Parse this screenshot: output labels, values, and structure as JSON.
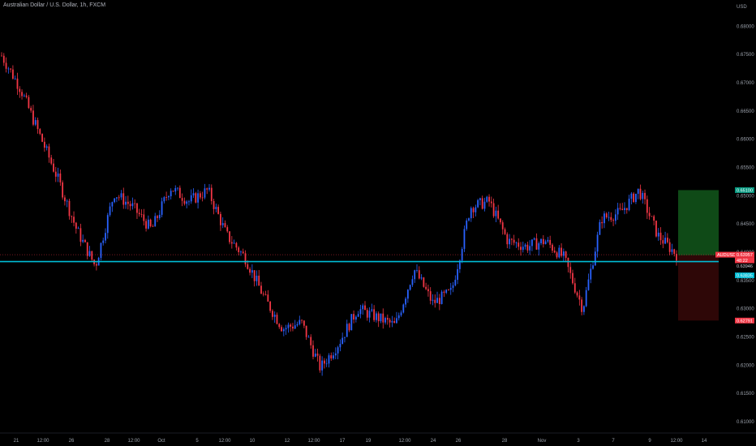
{
  "header": {
    "title": "Australian Dollar / U.S. Dollar, 1h, FXCM"
  },
  "price_axis": {
    "unit": "USD",
    "ticks": [
      "0.68000",
      "0.67500",
      "0.67000",
      "0.66500",
      "0.66000",
      "0.65500",
      "0.65000",
      "0.64500",
      "0.64000",
      "0.63500",
      "0.63000",
      "0.62500",
      "0.62000",
      "0.61500",
      "0.61000"
    ]
  },
  "time_axis": {
    "ticks": [
      "21",
      "12:00",
      "26",
      "28",
      "12:00",
      "Oct",
      "5",
      "12:00",
      "10",
      "12",
      "12:00",
      "17",
      "19",
      "12:00",
      "24",
      "26",
      "28",
      "Nov",
      "3",
      "7",
      "9",
      "12:00",
      "14"
    ]
  },
  "price_tags": {
    "target": {
      "value": "0.65100",
      "color": "#089981"
    },
    "symbol": {
      "label": "AUDUSD",
      "color": "#f23645"
    },
    "last_price": {
      "value": "0.63957",
      "color": "#f23645"
    },
    "countdown": {
      "value": "48:22",
      "color": "#f23645"
    },
    "entry": {
      "value": "0.63946",
      "color": "#000000"
    },
    "hline": {
      "value": "0.63835",
      "color": "#00bcd4"
    },
    "stop": {
      "value": "0.62791",
      "color": "#f23645"
    }
  },
  "colors": {
    "up_candle": "#2962ff",
    "down_candle": "#f23645",
    "profit_zone": "#0f4a17",
    "loss_zone": "#2e0707",
    "horizontal_line": "#00bcd4"
  },
  "chart_data": {
    "type": "candlestick",
    "title": "Australian Dollar / U.S. Dollar, 1h, FXCM",
    "ylim": [
      0.608,
      0.6825
    ],
    "close_path": [
      [
        "21",
        0.6748
      ],
      [
        "12:00",
        0.669
      ],
      [
        "26",
        0.661
      ],
      [
        "26",
        0.653
      ],
      [
        "28",
        0.644
      ],
      [
        "28",
        0.6375
      ],
      [
        "12:00",
        0.6505
      ],
      [
        "12:00",
        0.648
      ],
      [
        "Oct",
        0.644
      ],
      [
        "Oct",
        0.6515
      ],
      [
        "5",
        0.649
      ],
      [
        "12:00",
        0.651
      ],
      [
        "12:00",
        0.643
      ],
      [
        "10",
        0.639
      ],
      [
        "10",
        0.632
      ],
      [
        "12",
        0.6265
      ],
      [
        "12:00",
        0.6275
      ],
      [
        "12:00",
        0.6195
      ],
      [
        "17",
        0.624
      ],
      [
        "17",
        0.63
      ],
      [
        "19",
        0.6285
      ],
      [
        "12:00",
        0.627
      ],
      [
        "24",
        0.637
      ],
      [
        "24",
        0.631
      ],
      [
        "26",
        0.633
      ],
      [
        "26",
        0.648
      ],
      [
        "28",
        0.649
      ],
      [
        "28",
        0.642
      ],
      [
        "Nov",
        0.641
      ],
      [
        "Nov",
        0.642
      ],
      [
        "3",
        0.639
      ],
      [
        "3",
        0.63
      ],
      [
        "7",
        0.646
      ],
      [
        "7",
        0.647
      ],
      [
        "9",
        0.651
      ],
      [
        "12:00",
        0.643
      ],
      [
        "12:00",
        0.6396
      ]
    ],
    "zones": {
      "profit": [
        0.63946,
        0.651
      ],
      "loss": [
        0.62791,
        0.63946
      ]
    },
    "hline": 0.63835,
    "grid": false
  }
}
